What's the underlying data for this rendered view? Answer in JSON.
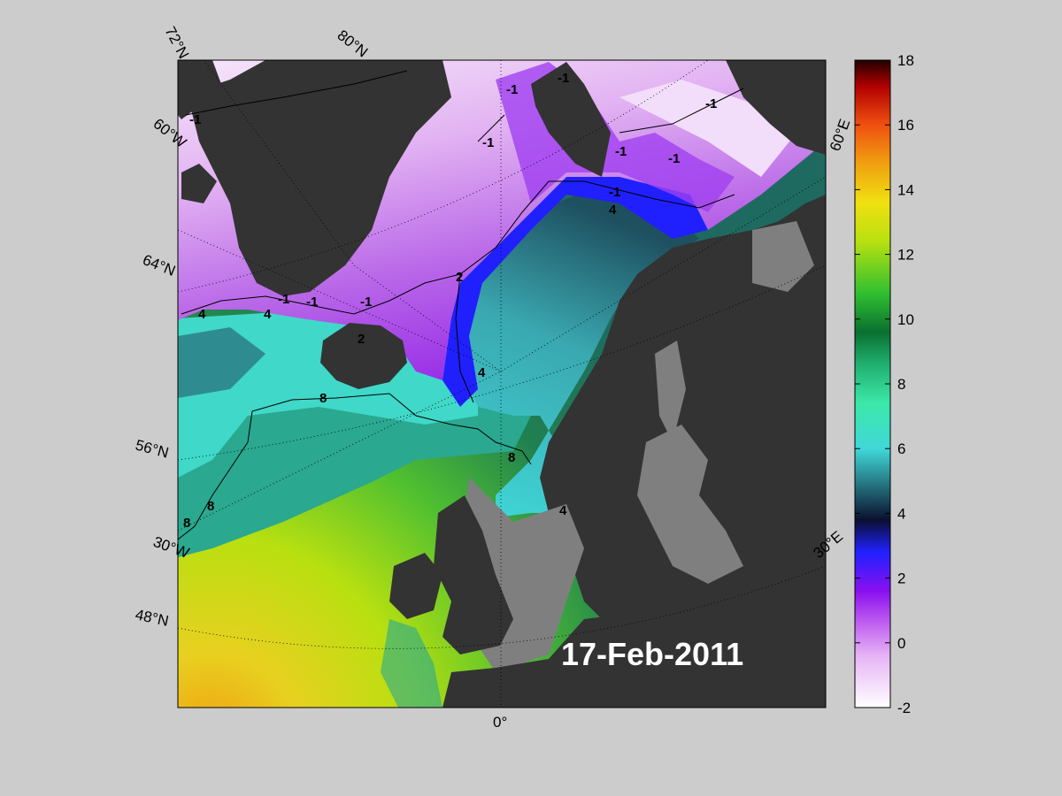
{
  "map": {
    "date_label": "17-Feb-2011",
    "graticule_labels": {
      "lat_72": "72°N",
      "lon_80": "80°N",
      "lat_60w": "60°W",
      "lat_64": "64°N",
      "lat_56": "56°N",
      "lon_30w": "30°W",
      "lat_48": "48°N",
      "lon_0": "0°",
      "lon_30e": "30°E",
      "lon_60e": "60°E"
    },
    "contour_labels": [
      "-1",
      "-1",
      "-1",
      "-1",
      "-1",
      "-1",
      "-1",
      "-1",
      "-1",
      "-1",
      "-1",
      "2",
      "2",
      "4",
      "4",
      "4",
      "4",
      "4",
      "8",
      "8",
      "8",
      "8"
    ],
    "colors": {
      "land": "#333333",
      "shelf": "#7f7f7f",
      "background": "#cccccc"
    }
  },
  "colorbar": {
    "min": -2,
    "max": 18,
    "ticks": [
      "18",
      "16",
      "14",
      "12",
      "10",
      "8",
      "6",
      "4",
      "2",
      "0",
      "-2"
    ]
  }
}
